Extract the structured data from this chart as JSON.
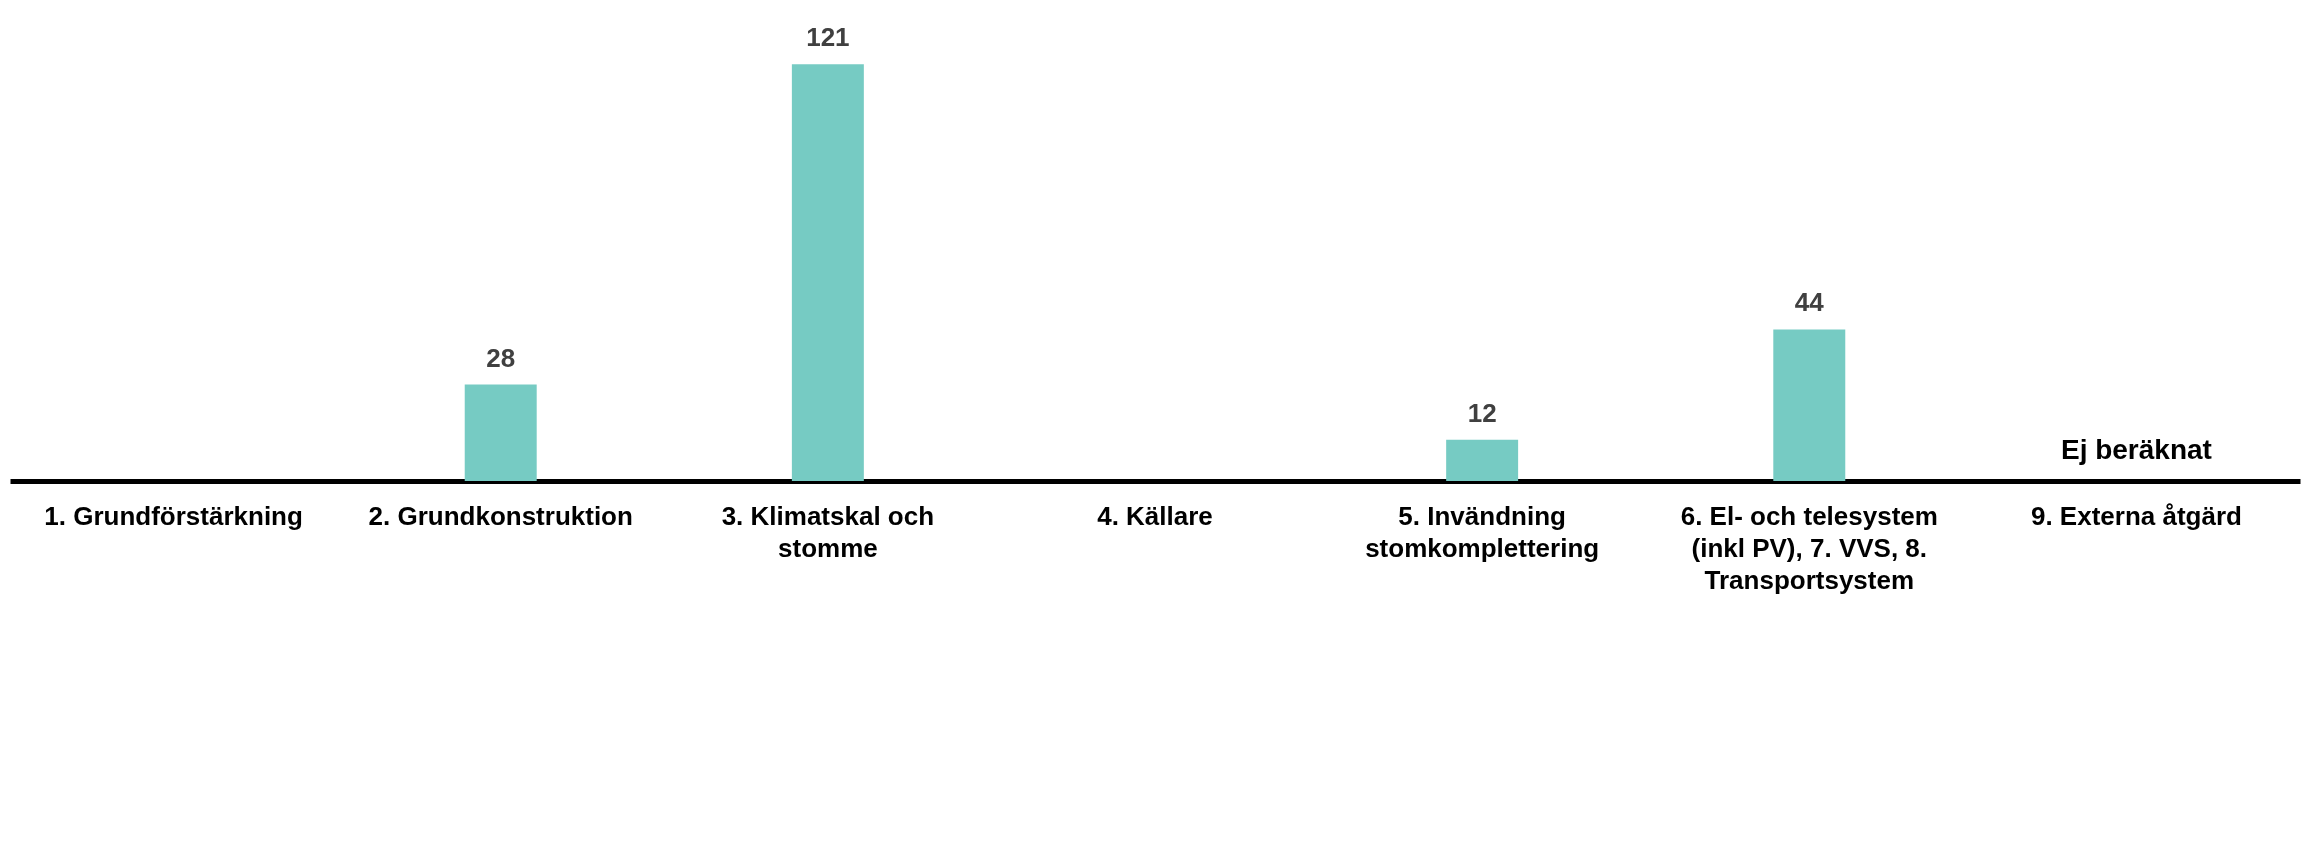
{
  "chart_data": {
    "type": "bar",
    "categories": [
      "1. Grundförstärkning",
      "2. Grundkonstruktion",
      "3. Klimatskal och stomme",
      "4. Källare",
      "5. Invändning stomkomplettering",
      "6. El- och telesystem (inkl PV), 7. VVS, 8. Transportsystem",
      "9. Externa åtgärd"
    ],
    "values": [
      null,
      28,
      121,
      null,
      12,
      44,
      null
    ],
    "color": "#76cbc3",
    "data_labels": true,
    "annotations": [
      "Ej beräknat"
    ]
  }
}
